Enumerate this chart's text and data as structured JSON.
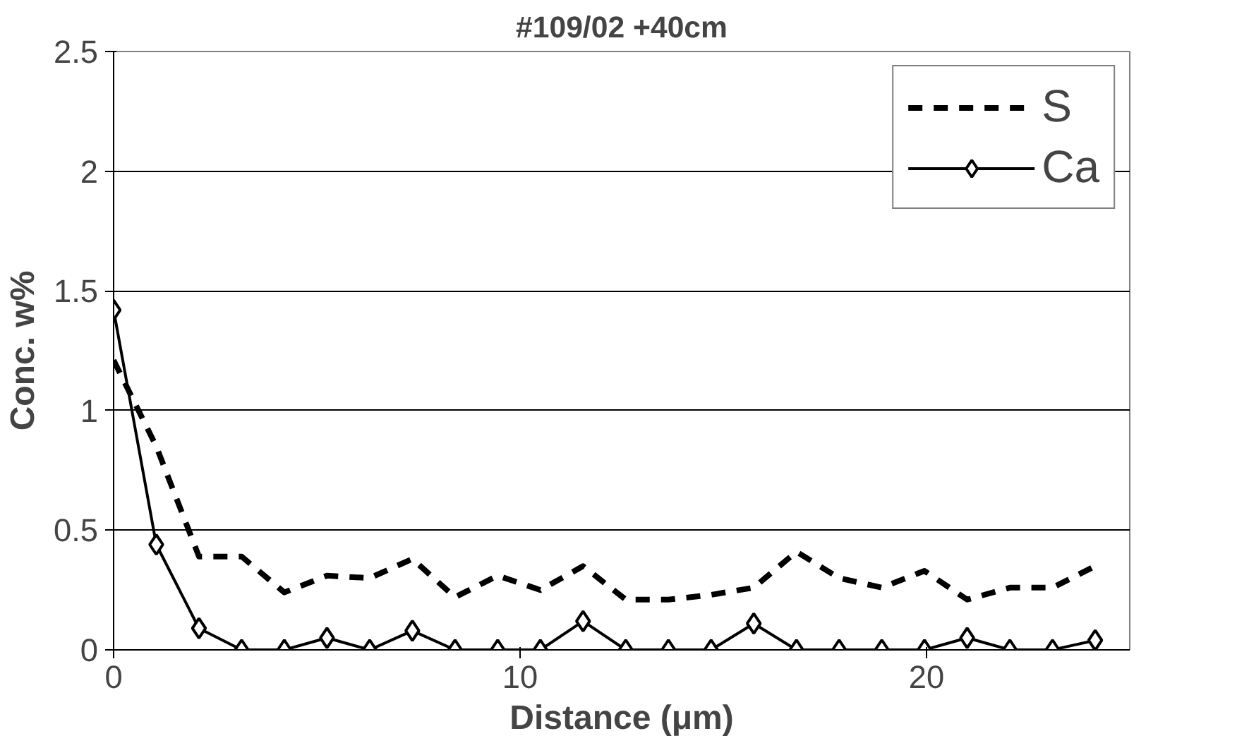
{
  "chart_data": {
    "type": "line",
    "title": "#109/02 +40cm",
    "xlabel": "Distance (μm)",
    "ylabel": "Conc. w%",
    "x": [
      0,
      1.05,
      2.1,
      3.15,
      4.2,
      5.25,
      6.3,
      7.35,
      8.4,
      9.45,
      10.5,
      11.55,
      12.6,
      13.65,
      14.7,
      15.75,
      16.8,
      17.85,
      18.9,
      19.95,
      21,
      22.05,
      23.1,
      24.15
    ],
    "series": [
      {
        "name": "S",
        "color": "#000000",
        "line_style": "dashed",
        "marker": "none",
        "values": [
          1.21,
          0.85,
          0.39,
          0.39,
          0.24,
          0.31,
          0.3,
          0.38,
          0.22,
          0.31,
          0.25,
          0.35,
          0.21,
          0.21,
          0.23,
          0.26,
          0.41,
          0.3,
          0.26,
          0.33,
          0.21,
          0.26,
          0.26,
          0.35
        ]
      },
      {
        "name": "Ca",
        "color": "#000000",
        "line_style": "solid",
        "marker": "diamond",
        "values": [
          1.42,
          0.44,
          0.09,
          0,
          0,
          0.05,
          0,
          0.08,
          0,
          0,
          0,
          0.12,
          0,
          0,
          0,
          0.11,
          0,
          0,
          0,
          0,
          0.05,
          0,
          0,
          0.04
        ]
      }
    ],
    "xlim": [
      0,
      25
    ],
    "xticks": [
      0,
      10,
      20
    ],
    "ylim": [
      0,
      2.5
    ],
    "yticks": [
      0,
      0.5,
      1,
      1.5,
      2,
      2.5
    ],
    "grid": "y",
    "legend": "top right"
  }
}
